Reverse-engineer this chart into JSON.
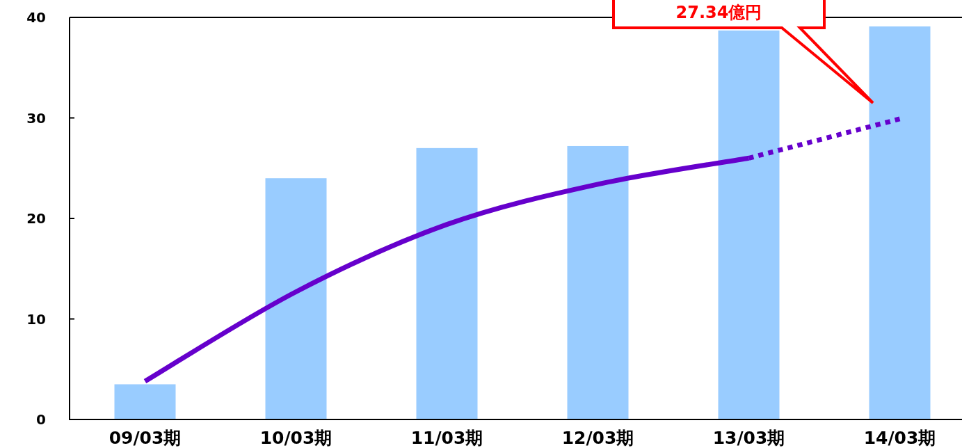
{
  "chart_data": {
    "type": "bar",
    "categories": [
      "09/03期",
      "10/03期",
      "11/03期",
      "12/03期",
      "13/03期",
      "14/03期"
    ],
    "series": [
      {
        "color": "#99ccff",
        "values": [
          3.5,
          24,
          27,
          27.2,
          38.7,
          39.1
        ]
      },
      {
        "type": "line",
        "color": "#6600cc",
        "line_style": "solid",
        "values": [
          3.8,
          12.7,
          19.4,
          23.4,
          26.0,
          null
        ]
      },
      {
        "type": "line",
        "color": "#6600cc",
        "line_style": "dotted",
        "values": [
          null,
          null,
          null,
          null,
          26.0,
          29.9
        ]
      }
    ],
    "ylim": [
      0,
      40
    ],
    "yticks": [
      0,
      10,
      20,
      30,
      40
    ],
    "grid": false,
    "annotations": [
      "27.34億円"
    ]
  }
}
